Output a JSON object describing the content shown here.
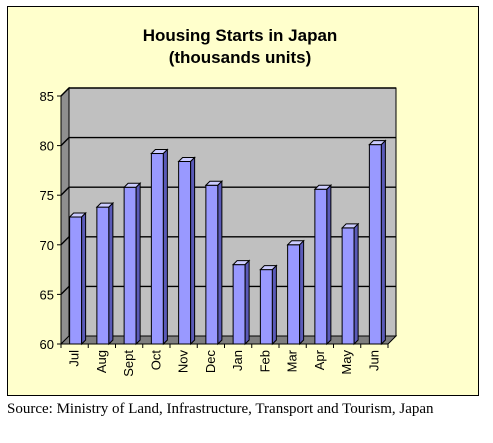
{
  "chart_data": {
    "type": "bar",
    "title": "Housing Starts in Japan",
    "subtitle": "(thousands units)",
    "categories": [
      "Jul",
      "Aug",
      "Sept",
      "Oct",
      "Nov",
      "Dec",
      "Jan",
      "Feb",
      "Mar",
      "Apr",
      "May",
      "Jun"
    ],
    "values": [
      72.8,
      73.8,
      75.8,
      79.2,
      78.4,
      76.0,
      68.0,
      67.5,
      70.0,
      75.6,
      71.7,
      80.1
    ],
    "ylim": [
      60,
      85
    ],
    "yticks": [
      60,
      65,
      70,
      75,
      80,
      85
    ],
    "grid": true,
    "legend": "none",
    "xlabel": "",
    "ylabel": "",
    "colors": {
      "bar_front": "#9999ff",
      "bar_top": "#ccccff",
      "bar_side": "#5a5ab8",
      "plot_wall": "#c0c0c0",
      "plot_wall_side": "#8f8f8f",
      "plot_floor": "#7f7f7f",
      "panel_background": "#ffffcc"
    }
  },
  "source_note": "Source: Ministry of Land, Infrastructure, Transport and Tourism, Japan"
}
